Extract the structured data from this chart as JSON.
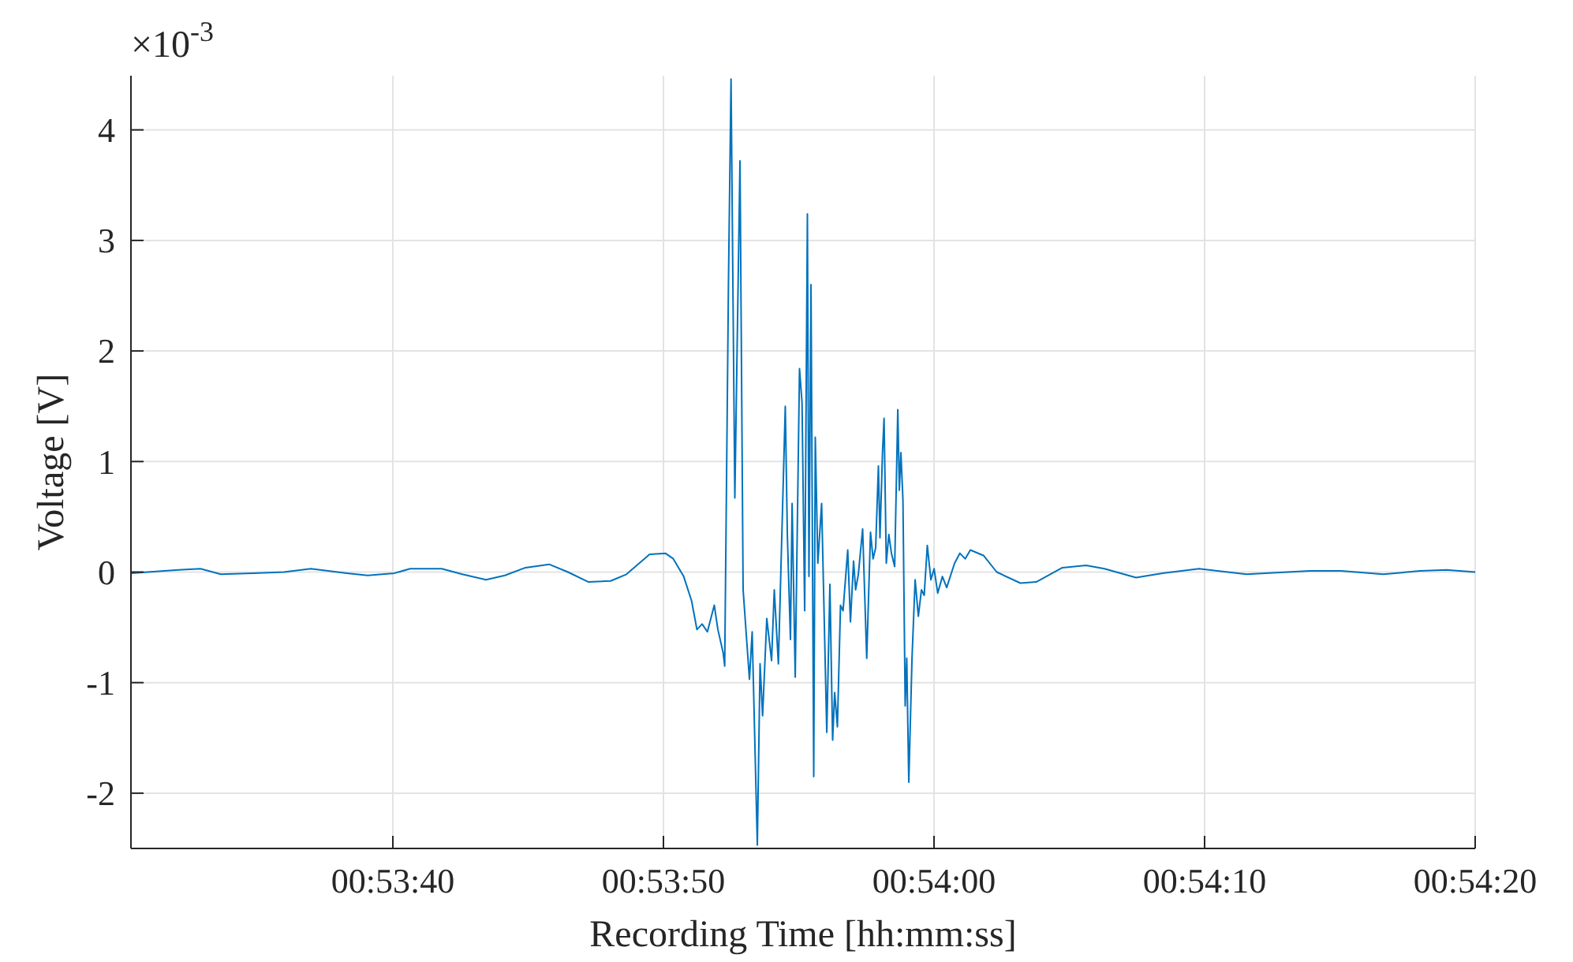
{
  "chart_data": {
    "type": "line",
    "xlabel": "Recording Time [hh:mm:ss]",
    "ylabel": "Voltage [V]",
    "annotations": [
      "×10$^{-3}$"
    ],
    "xlim": [
      0.891755,
      0.905556
    ],
    "ylim": [
      -2.5,
      4.49
    ],
    "xticks": [
      {
        "value": 0.894444,
        "label": "00:53:40"
      },
      {
        "value": 0.897222,
        "label": "00:53:50"
      },
      {
        "value": 0.9,
        "label": "00:54:00"
      },
      {
        "value": 0.902778,
        "label": "00:54:10"
      },
      {
        "value": 0.905556,
        "label": "00:54:20"
      }
    ],
    "yticks": [
      -2,
      -1,
      0,
      1,
      2,
      3,
      4
    ],
    "grid": true,
    "marker": "none",
    "line_style": "solid",
    "series": [
      {
        "color": "#0072bd",
        "x": [
          0.891755,
          0.892241,
          0.892468,
          0.892678,
          0.893002,
          0.893326,
          0.893602,
          0.893974,
          0.894185,
          0.89446,
          0.894622,
          0.894946,
          0.895157,
          0.8954,
          0.895594,
          0.895805,
          0.896048,
          0.896242,
          0.896453,
          0.89668,
          0.896842,
          0.89708,
          0.897242,
          0.897323,
          0.89743,
          0.897511,
          0.897566,
          0.897619,
          0.897673,
          0.897744,
          0.897781,
          0.897835,
          0.897851,
          0.89789,
          0.897916,
          0.897955,
          0.898008,
          0.89804,
          0.898105,
          0.898133,
          0.898186,
          0.898214,
          0.89824,
          0.898283,
          0.898332,
          0.89836,
          0.898402,
          0.898473,
          0.898494,
          0.898526,
          0.898543,
          0.898575,
          0.898619,
          0.898645,
          0.898672,
          0.8987,
          0.898716,
          0.898737,
          0.898765,
          0.898781,
          0.898807,
          0.898846,
          0.898899,
          0.898931,
          0.898959,
          0.89898,
          0.899008,
          0.89904,
          0.899066,
          0.899093,
          0.899114,
          0.899142,
          0.899174,
          0.899195,
          0.899223,
          0.899267,
          0.899309,
          0.899348,
          0.899374,
          0.899401,
          0.899429,
          0.899445,
          0.899471,
          0.899487,
          0.89951,
          0.899536,
          0.899563,
          0.899596,
          0.899628,
          0.899644,
          0.89966,
          0.899681,
          0.899704,
          0.89972,
          0.899741,
          0.899774,
          0.899806,
          0.899839,
          0.899871,
          0.899899,
          0.899931,
          0.899968,
          0.900001,
          0.900038,
          0.900086,
          0.90013,
          0.900211,
          0.900265,
          0.90032,
          0.900373,
          0.900508,
          0.900644,
          0.900887,
          0.901049,
          0.901318,
          0.901561,
          0.90175,
          0.902074,
          0.902345,
          0.902722,
          0.903208,
          0.903856,
          0.90418,
          0.904613,
          0.90499,
          0.905261,
          0.905556
        ],
        "values": [
          -0.01,
          0.02,
          0.03,
          -0.02,
          -0.01,
          0.0,
          0.03,
          -0.01,
          -0.03,
          -0.01,
          0.03,
          0.03,
          -0.02,
          -0.07,
          -0.03,
          0.04,
          0.07,
          0.0,
          -0.09,
          -0.08,
          -0.02,
          0.16,
          0.17,
          0.12,
          -0.04,
          -0.26,
          -0.52,
          -0.47,
          -0.54,
          -0.3,
          -0.52,
          -0.73,
          -0.85,
          2.65,
          4.46,
          0.67,
          3.72,
          -0.16,
          -0.97,
          -0.54,
          -2.47,
          -0.83,
          -1.3,
          -0.42,
          -0.8,
          -0.16,
          -0.83,
          1.5,
          0.34,
          -0.61,
          0.62,
          -0.95,
          1.84,
          1.53,
          -0.35,
          3.24,
          -0.04,
          2.6,
          -1.85,
          1.22,
          0.08,
          0.62,
          -1.45,
          -0.11,
          -1.52,
          -1.09,
          -1.4,
          -0.3,
          -0.35,
          -0.04,
          0.2,
          -0.45,
          0.1,
          -0.16,
          -0.02,
          0.39,
          -0.78,
          0.36,
          0.12,
          0.22,
          0.96,
          0.31,
          1.08,
          1.39,
          0.08,
          0.34,
          0.17,
          0.05,
          1.47,
          0.74,
          1.08,
          0.65,
          -1.21,
          -0.78,
          -1.9,
          -0.78,
          -0.07,
          -0.4,
          -0.16,
          -0.21,
          0.24,
          -0.07,
          0.03,
          -0.19,
          -0.04,
          -0.14,
          0.08,
          0.17,
          0.12,
          0.2,
          0.15,
          0.0,
          -0.1,
          -0.09,
          0.04,
          0.06,
          0.03,
          -0.05,
          -0.01,
          0.03,
          -0.02,
          0.01,
          0.01,
          -0.02,
          0.01,
          0.02,
          0.0
        ]
      }
    ]
  }
}
